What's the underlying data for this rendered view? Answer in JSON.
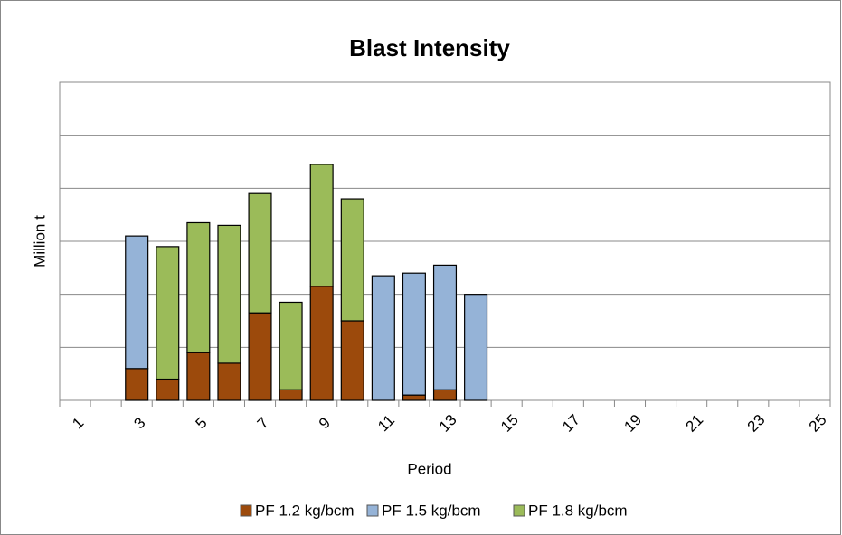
{
  "chart_data": {
    "type": "stacked_bar",
    "title": "Blast Intensity",
    "x_label": "Period",
    "y_label": "Million t",
    "categories": [
      "1",
      null,
      "3",
      null,
      "5",
      null,
      "7",
      null,
      "9",
      null,
      "11",
      null,
      "13",
      null,
      "15",
      null,
      "17",
      null,
      "19",
      null,
      "21",
      null,
      "23",
      null,
      "25"
    ],
    "series": [
      {
        "name": "PF 1.2 kg/bcm",
        "color": "#9c4a0c",
        "values": [
          null,
          null,
          0.6,
          0.4,
          0.9,
          0.7,
          1.65,
          0.2,
          2.15,
          1.5,
          null,
          0.1,
          0.2,
          null,
          null,
          null,
          null,
          null,
          null,
          null,
          null,
          null,
          null,
          null,
          null
        ]
      },
      {
        "name": "PF 1.5 kg/bcm",
        "color": "#95b3d7",
        "values": [
          null,
          null,
          2.5,
          null,
          null,
          null,
          null,
          null,
          null,
          null,
          2.35,
          2.3,
          2.35,
          2.0,
          null,
          null,
          null,
          null,
          null,
          null,
          null,
          null,
          null,
          null,
          null
        ]
      },
      {
        "name": "PF 1.8 kg/bcm",
        "color": "#9bbb59",
        "values": [
          null,
          null,
          null,
          2.5,
          2.45,
          2.6,
          2.25,
          1.65,
          2.3,
          2.3,
          null,
          null,
          null,
          null,
          null,
          null,
          null,
          null,
          null,
          null,
          null,
          null,
          null,
          null,
          null
        ]
      }
    ],
    "ylim": [
      0,
      6
    ],
    "yticks": [
      0,
      1,
      2,
      3,
      4,
      5,
      6
    ],
    "grid": true,
    "legend": "bottom"
  }
}
